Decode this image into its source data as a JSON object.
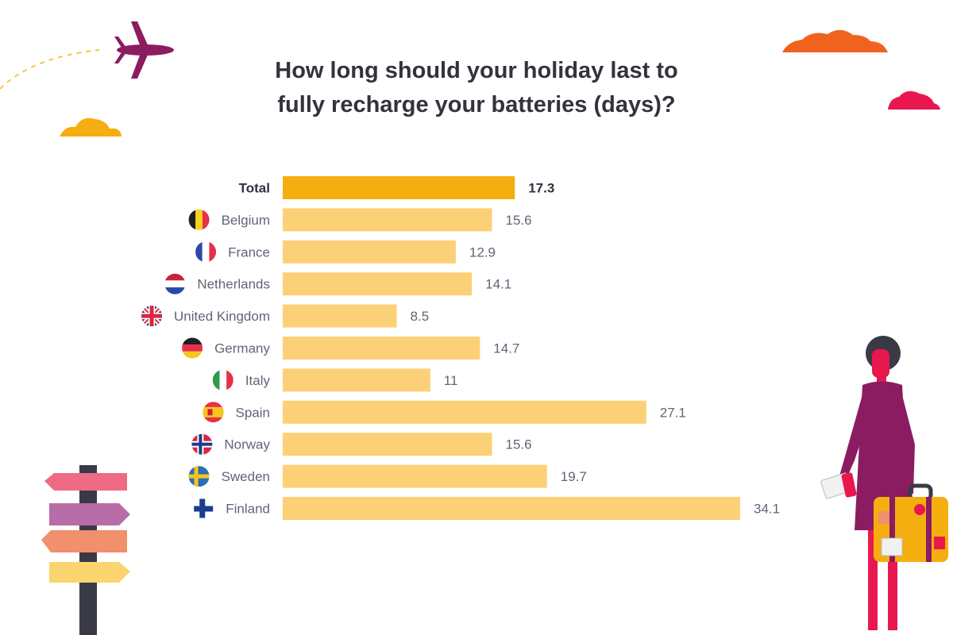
{
  "chart_data": {
    "type": "bar",
    "orientation": "horizontal",
    "title": "How long should your holiday last to\nfully recharge your batteries (days)?",
    "categories": [
      "Total",
      "Belgium",
      "France",
      "Netherlands",
      "United Kingdom",
      "Germany",
      "Italy",
      "Spain",
      "Norway",
      "Sweden",
      "Finland"
    ],
    "values": [
      17.3,
      15.6,
      12.9,
      14.1,
      8.5,
      14.7,
      11,
      27.1,
      15.6,
      19.7,
      34.1
    ],
    "value_labels": [
      "17.3",
      "15.6",
      "12.9",
      "14.1",
      "8.5",
      "14.7",
      "11",
      "27.1",
      "15.6",
      "19.7",
      "34.1"
    ],
    "flags": [
      "",
      "belgium-flag-icon",
      "france-flag-icon",
      "netherlands-flag-icon",
      "united-kingdom-flag-icon",
      "germany-flag-icon",
      "italy-flag-icon",
      "spain-flag-icon",
      "norway-flag-icon",
      "sweden-flag-icon",
      "finland-flag-icon"
    ],
    "highlight_category": "Total",
    "xlim": [
      0,
      34.1
    ],
    "grid": false,
    "legend": "none",
    "colors": {
      "highlight": "#f5ae0f",
      "bar": "#fcd077",
      "label": "#5f6674",
      "title": "#33333d"
    }
  },
  "decorations": [
    "airplane-icon",
    "cloud-icon",
    "signpost-icon",
    "traveler-with-suitcase-illustration"
  ]
}
